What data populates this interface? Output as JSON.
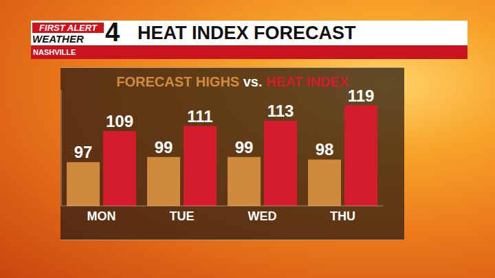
{
  "header": {
    "logo_top": "FIRST ALERT",
    "logo_bottom": "WEATHER",
    "logo_number": "4",
    "title": "HEAT INDEX FORECAST",
    "location": "NASHVILLE"
  },
  "chart_data": {
    "type": "bar",
    "title": "FORECAST HIGHS vs. HEAT INDEX",
    "categories": [
      "MON",
      "TUE",
      "WED",
      "THU"
    ],
    "series": [
      {
        "name": "FORECAST HIGHS",
        "color": "#d08a3e",
        "values": [
          97,
          99,
          99,
          98
        ]
      },
      {
        "name": "HEAT INDEX",
        "color": "#d41c2c",
        "values": [
          109,
          111,
          113,
          119
        ]
      }
    ],
    "ylim": [
      80,
      125
    ],
    "grid": false,
    "data_labels": true,
    "tick_labels": "x"
  }
}
